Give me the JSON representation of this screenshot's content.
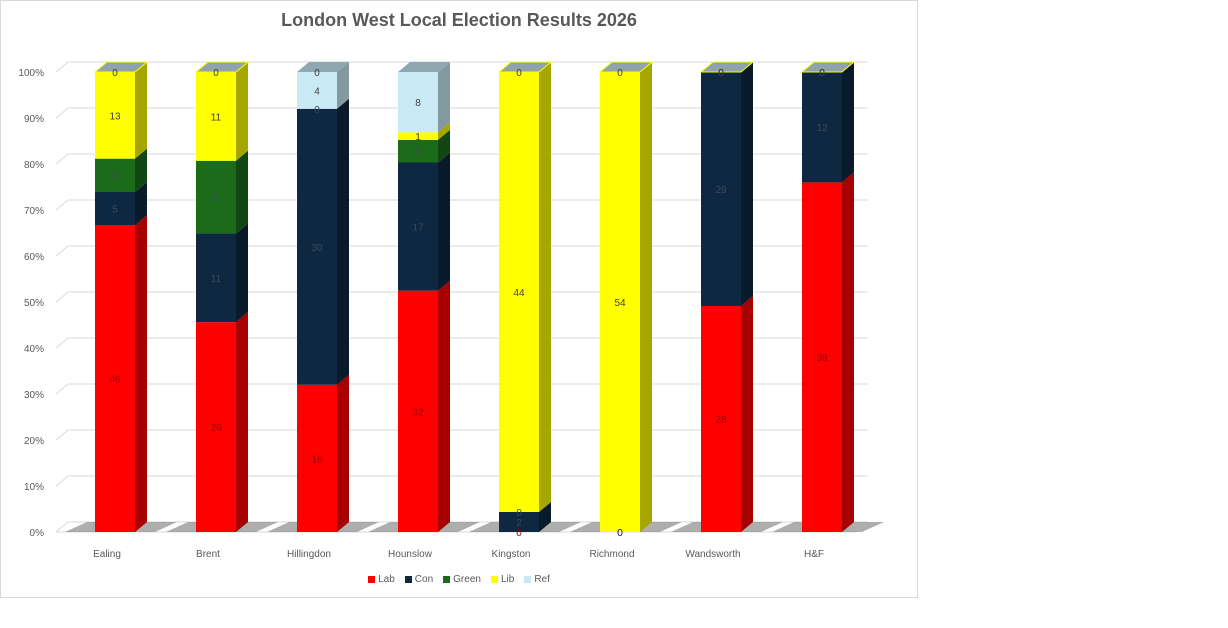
{
  "chart_data": {
    "type": "bar",
    "stacked": "100%",
    "title": "London West Local Election Results 2026",
    "categories": [
      "Ealing",
      "Brent",
      "Hillingdon",
      "Hounslow",
      "Kingston",
      "Richmond",
      "Wandsworth",
      "H&F"
    ],
    "series": [
      {
        "name": "Lab",
        "color": "#ff0000",
        "values": [
          46,
          26,
          16,
          32,
          0,
          0,
          28,
          38
        ]
      },
      {
        "name": "Con",
        "color": "#0e2841",
        "values": [
          5,
          11,
          30,
          17,
          2,
          0,
          29,
          12
        ]
      },
      {
        "name": "Green",
        "color": "#1b6b1b",
        "values": [
          5,
          9,
          0,
          3,
          0,
          0,
          0,
          0
        ]
      },
      {
        "name": "Lib",
        "color": "#ffff00",
        "values": [
          13,
          11,
          0,
          1,
          44,
          54,
          0,
          0
        ]
      },
      {
        "name": "Ref",
        "color": "#c9eaf5",
        "values": [
          0,
          0,
          4,
          8,
          0,
          0,
          0,
          0
        ]
      }
    ],
    "ylim": [
      0,
      100
    ],
    "yticks": [
      "0%",
      "10%",
      "20%",
      "30%",
      "40%",
      "50%",
      "60%",
      "70%",
      "80%",
      "90%",
      "100%"
    ],
    "grid": true,
    "legend_position": "bottom",
    "style": "3d"
  }
}
